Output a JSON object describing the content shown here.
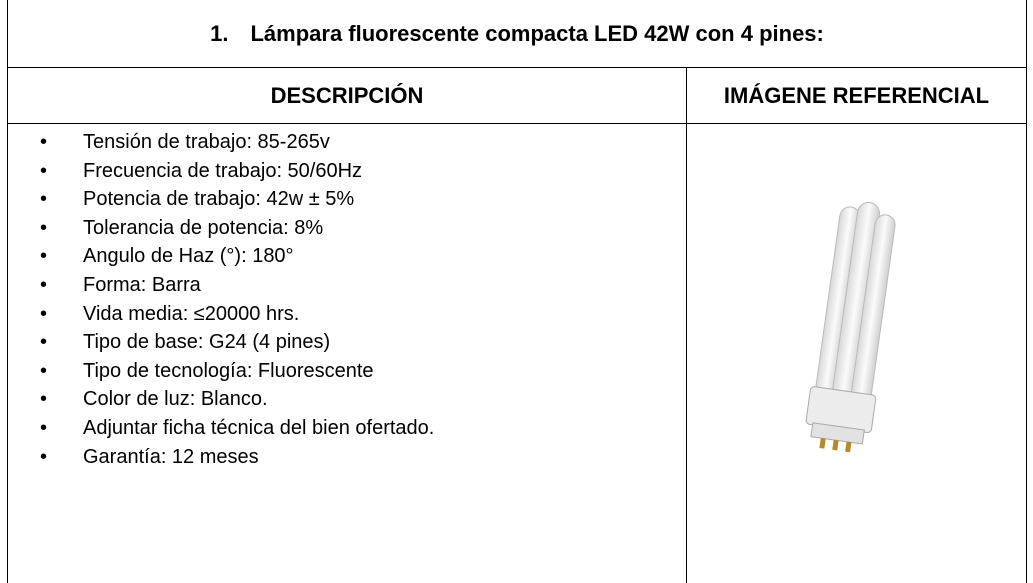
{
  "title": {
    "number": "1.",
    "text": "Lámpara fluorescente compacta LED 42W con 4 pines:"
  },
  "table": {
    "headers": [
      "DESCRIPCIÓN",
      "IMÁGENE REFERENCIAL"
    ],
    "items": [
      "Tensión de trabajo: 85-265v",
      "Frecuencia de trabajo: 50/60Hz",
      "Potencia de trabajo: 42w ± 5%",
      "Tolerancia de potencia: 8%",
      "Angulo de Haz (°): 180°",
      "Forma: Barra",
      "Vida media: ≤20000 hrs.",
      "Tipo de base: G24 (4 pines)",
      "Tipo de tecnología: Fluorescente",
      "Color de luz: Blanco.",
      "Adjuntar ficha técnica del bien ofertado.",
      "Garantía: 12 meses"
    ]
  }
}
